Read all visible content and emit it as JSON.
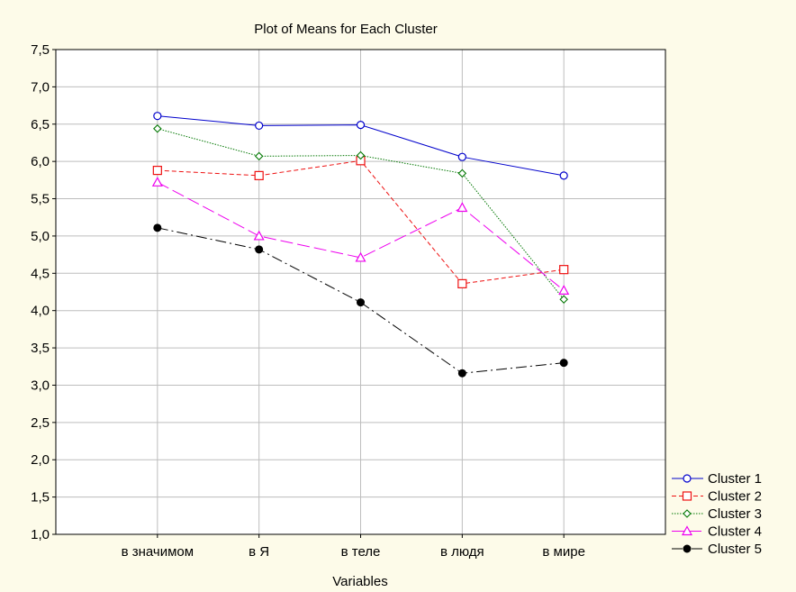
{
  "chart_data": {
    "type": "line",
    "title": "Plot of Means for Each Cluster",
    "xlabel": "Variables",
    "ylabel": "",
    "categories": [
      "в значимом",
      "в Я",
      "в теле",
      "в людя",
      "в мире"
    ],
    "ylim": [
      1.0,
      7.5
    ],
    "yticks": [
      "1,0",
      "1,5",
      "2,0",
      "2,5",
      "3,0",
      "3,5",
      "4,0",
      "4,5",
      "5,0",
      "5,5",
      "6,0",
      "6,5",
      "7,0",
      "7,5"
    ],
    "grid": true,
    "legend_position": "bottom-right",
    "series": [
      {
        "name": "Cluster 1",
        "values": [
          6.61,
          6.48,
          6.49,
          6.06,
          5.81
        ],
        "color": "#0000cc",
        "marker": "circle-open",
        "dash": "solid"
      },
      {
        "name": "Cluster 2",
        "values": [
          5.88,
          5.81,
          6.01,
          4.36,
          4.55
        ],
        "color": "#ee1111",
        "marker": "square-open",
        "dash": "short-dash"
      },
      {
        "name": "Cluster 3",
        "values": [
          6.44,
          6.07,
          6.08,
          5.84,
          4.15
        ],
        "color": "#007700",
        "marker": "diamond-open",
        "dash": "dot"
      },
      {
        "name": "Cluster 4",
        "values": [
          5.72,
          5.0,
          4.71,
          5.38,
          4.27
        ],
        "color": "#ee00ee",
        "marker": "triangle-open",
        "dash": "long-dash"
      },
      {
        "name": "Cluster 5",
        "values": [
          5.11,
          4.82,
          4.11,
          3.16,
          3.3
        ],
        "color": "#000000",
        "marker": "circle-filled",
        "dash": "dash-dot"
      }
    ]
  }
}
